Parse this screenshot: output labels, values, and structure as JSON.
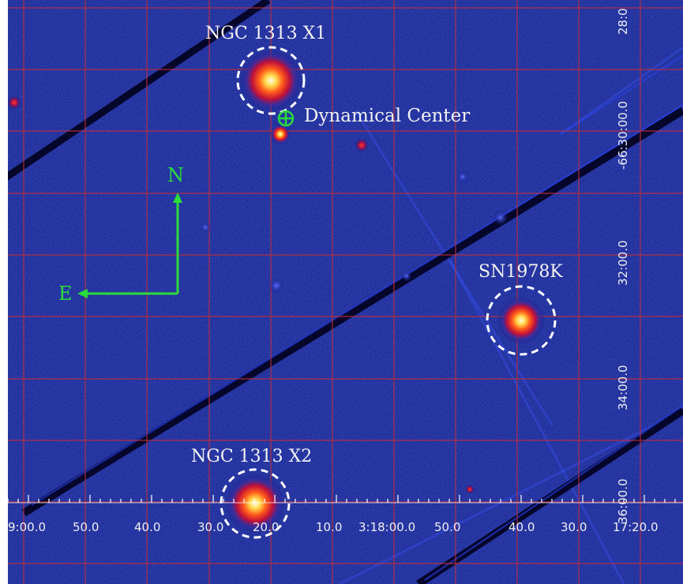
{
  "sources": [
    {
      "id": "x1",
      "label": "NGC 1313 X1"
    },
    {
      "id": "sn",
      "label": "SN1978K"
    },
    {
      "id": "x2",
      "label": "NGC 1313 X2"
    }
  ],
  "dynamical_center": {
    "label": "Dynamical Center"
  },
  "compass": {
    "north": "N",
    "east": "E"
  },
  "ra_ticks": [
    "9:00.0",
    "50.0",
    "40.0",
    "30.0",
    "20.0",
    "10.0",
    "3:18:00.0",
    "50.0",
    "40.0",
    "30.0",
    "17:20.0"
  ],
  "dec_ticks": [
    "28:0",
    "-66:30:00.0",
    "32:00.0",
    "34:00.0",
    "36:00.0"
  ],
  "colors": {
    "background": "#0a1478",
    "grid": "#c0303a",
    "marker_circle": "#ffffff",
    "compass": "#2bdc3a",
    "source_core": "#fff8b0"
  }
}
